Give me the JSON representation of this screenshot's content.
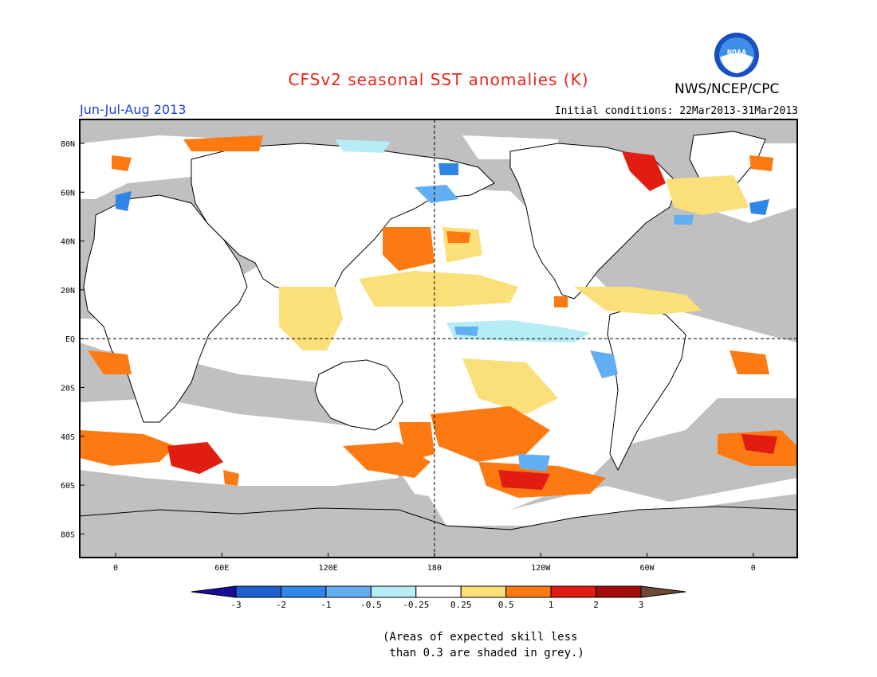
{
  "title": "CFSv2 seasonal SST anomalies (K)",
  "organization": "NWS/NCEP/CPC",
  "logo_text": "NOAA",
  "season": "Jun-Jul-Aug 2013",
  "initial_conditions": "Initial conditions: 22Mar2013-31Mar2013",
  "lat_labels": [
    "80N",
    "60N",
    "40N",
    "20N",
    "EQ",
    "20S",
    "40S",
    "60S",
    "80S"
  ],
  "lon_labels": [
    "0",
    "60E",
    "120E",
    "180",
    "120W",
    "60W",
    "0"
  ],
  "colorbar": {
    "labels": [
      "-3",
      "-2",
      "-1",
      "-0.5",
      "-0.25",
      "0.25",
      "0.5",
      "1",
      "2",
      "3"
    ],
    "colors": [
      "#1a0a9a",
      "#1f5fd0",
      "#2f86e6",
      "#62aef2",
      "#b6ecf6",
      "#ffffff",
      "#fbe07a",
      "#fd7a12",
      "#e11c10",
      "#a30a0a",
      "#6e4a35"
    ]
  },
  "note_lines": [
    "(Areas of expected skill less",
    " than 0.3 are shaded in grey.)"
  ],
  "colors": {
    "land": "#ffffff",
    "no_skill_grey": "#c0c0c0",
    "title_red": "#e8261b",
    "season_blue": "#1a3fd1"
  }
}
